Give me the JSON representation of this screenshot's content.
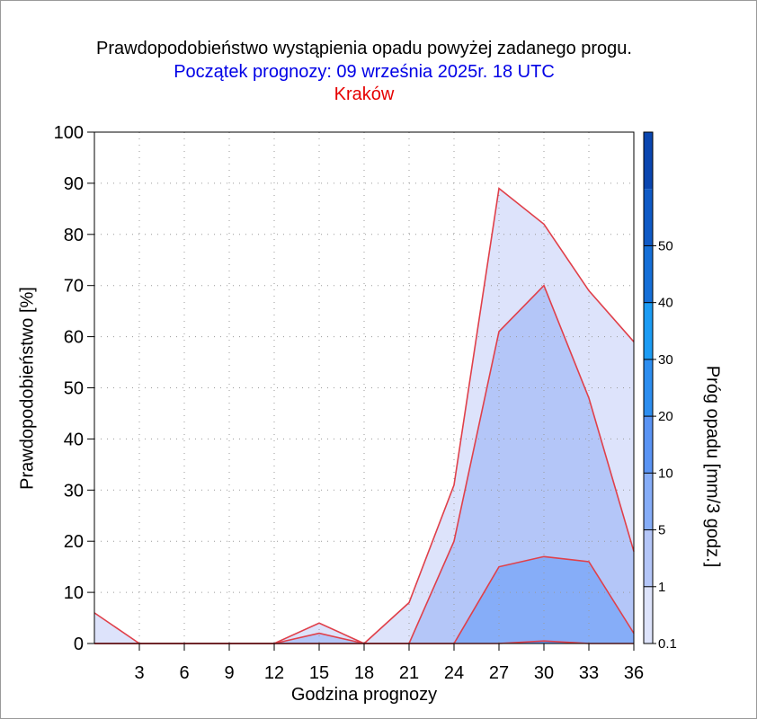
{
  "title": "Prawdopodobieństwo wystąpienia opadu powyżej zadanego progu.",
  "subtitle": "Początek prognozy: 09 września 2025r. 18 UTC",
  "location": "Kraków",
  "colors": {
    "title": "#000000",
    "subtitle": "#0000e6",
    "location": "#e60000",
    "line": "#e0404a",
    "grid": "#9a9a9a"
  },
  "chart_data": {
    "type": "area",
    "xlabel": "Godzina prognozy",
    "ylabel": "Prawdopodobieństwo [%]",
    "x": [
      0,
      3,
      6,
      9,
      12,
      15,
      18,
      21,
      24,
      27,
      30,
      33,
      36
    ],
    "x_ticks": [
      3,
      6,
      9,
      12,
      15,
      18,
      21,
      24,
      27,
      30,
      33,
      36
    ],
    "xlim": [
      0,
      36
    ],
    "ylim": [
      0,
      100
    ],
    "y_ticks": [
      0,
      10,
      20,
      30,
      40,
      50,
      60,
      70,
      80,
      90,
      100
    ],
    "grid": true,
    "series": [
      {
        "threshold": "0.1",
        "fill": "#dde3fb",
        "values": [
          6,
          0,
          0,
          0,
          0,
          4,
          0,
          8,
          31,
          89,
          82,
          69,
          59
        ]
      },
      {
        "threshold": "1",
        "fill": "#b4c6f8",
        "values": [
          0,
          0,
          0,
          0,
          0,
          2,
          0,
          0,
          20,
          61,
          70,
          48,
          18
        ]
      },
      {
        "threshold": "5",
        "fill": "#86adf8",
        "values": [
          0,
          0,
          0,
          0,
          0,
          0,
          0,
          0,
          0,
          15,
          17,
          16,
          2
        ]
      },
      {
        "threshold": "10",
        "fill": "#5a94f4",
        "values": [
          0,
          0,
          0,
          0,
          0,
          0,
          0,
          0,
          0,
          0,
          0.5,
          0,
          0
        ]
      }
    ],
    "colorbar": {
      "label": "Próg opadu [mm/3 godz.]",
      "levels": [
        "0.1",
        "1",
        "5",
        "10",
        "20",
        "30",
        "40",
        "50"
      ],
      "colors": [
        "#dde3fb",
        "#b4c6f8",
        "#86adf8",
        "#5a94f4",
        "#2d8ef0",
        "#1c9cf4",
        "#156fd8",
        "#0f5ac6",
        "#0a46b0"
      ]
    }
  }
}
